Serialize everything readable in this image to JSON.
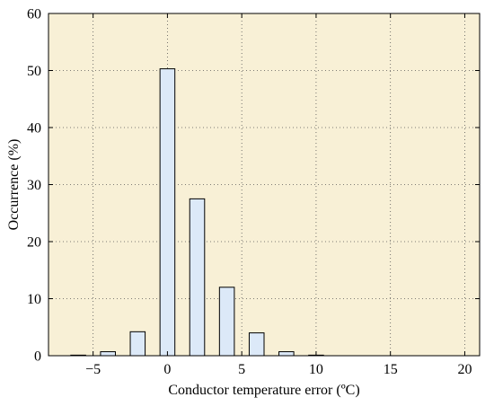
{
  "chart_data": {
    "type": "bar",
    "title": "",
    "xlabel": "Conductor temperature error (ºC)",
    "ylabel": "Occurrence (%)",
    "xlim": [
      -8,
      21
    ],
    "ylim": [
      0,
      60
    ],
    "xticks": [
      -5,
      0,
      5,
      10,
      15,
      20
    ],
    "xtick_labels": [
      "−5",
      "0",
      "5",
      "10",
      "15",
      "20"
    ],
    "yticks": [
      0,
      10,
      20,
      30,
      40,
      50,
      60
    ],
    "ytick_labels": [
      "0",
      "10",
      "20",
      "30",
      "40",
      "50",
      "60"
    ],
    "grid": true,
    "bar_width": 1,
    "x": [
      -6,
      -4,
      -2,
      0,
      2,
      4,
      6,
      8,
      10
    ],
    "values": [
      0.1,
      0.7,
      4.2,
      50.3,
      27.5,
      12.0,
      4.0,
      0.7,
      0.1
    ],
    "colors": {
      "plot_background": "#f8f0d6",
      "bar_fill": "#dce9f8",
      "bar_edge": "#000000",
      "grid": "#555555"
    }
  }
}
